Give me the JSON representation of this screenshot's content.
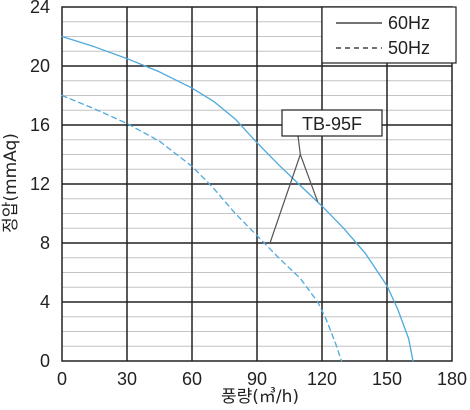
{
  "chart_data": {
    "type": "line",
    "xlabel": "풍량(㎥/h)",
    "ylabel": "정압(mmAq)",
    "xlim": [
      0,
      180
    ],
    "ylim": [
      0,
      24
    ],
    "x_ticks": [
      0,
      30,
      60,
      90,
      120,
      150,
      180
    ],
    "y_ticks": [
      0,
      4,
      8,
      12,
      16,
      20,
      24
    ],
    "grid": true,
    "legend_position": "top-right",
    "series_color": "#4da9dc",
    "series": [
      {
        "name": "60Hz",
        "style": "solid",
        "x": [
          0,
          15,
          30,
          45,
          60,
          70,
          80,
          90,
          100,
          110,
          120,
          130,
          140,
          150,
          155,
          160,
          162
        ],
        "y": [
          22,
          21.3,
          20.5,
          19.6,
          18.5,
          17.6,
          16.4,
          14.8,
          13.3,
          11.9,
          10.5,
          9.0,
          7.3,
          5.1,
          3.5,
          1.5,
          0
        ]
      },
      {
        "name": "50Hz",
        "style": "dashed",
        "x": [
          0,
          15,
          30,
          45,
          60,
          70,
          80,
          90,
          100,
          110,
          118,
          122,
          126,
          129
        ],
        "y": [
          18,
          17.1,
          16.1,
          14.9,
          13.2,
          11.7,
          10.0,
          8.5,
          7.0,
          5.6,
          4.0,
          2.8,
          1.3,
          0
        ]
      }
    ],
    "annotation": {
      "label": "TB-95F",
      "apex": [
        110,
        14
      ],
      "targets": [
        [
          96,
          8
        ],
        [
          118,
          10.8
        ]
      ]
    }
  }
}
